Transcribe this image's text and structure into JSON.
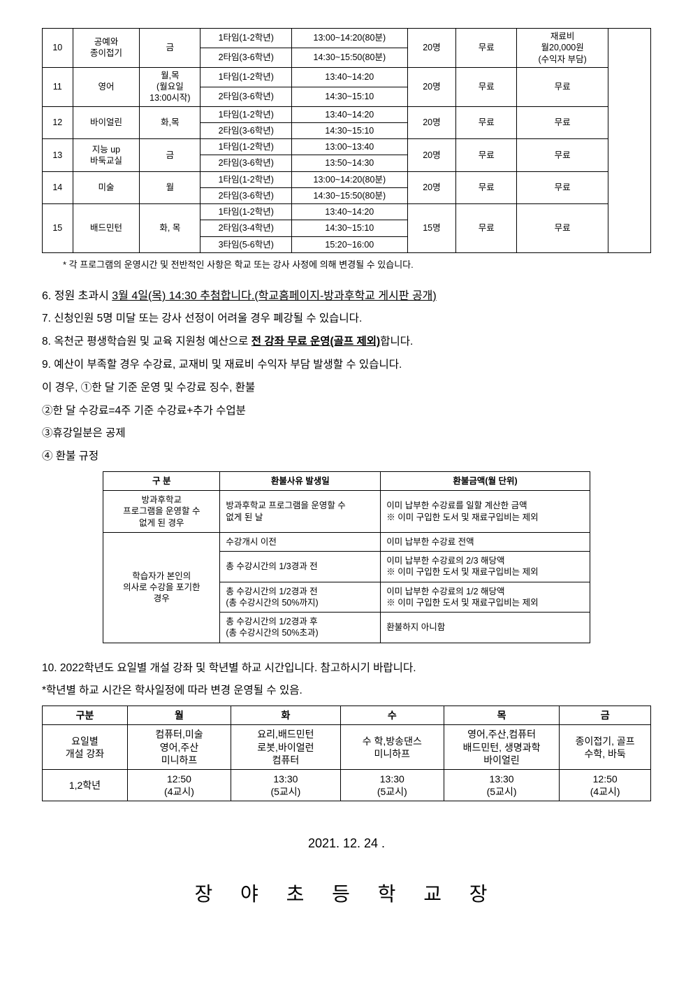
{
  "program_table": {
    "rows": [
      {
        "no": "10",
        "name": "공예와\n종이접기",
        "day": "금",
        "sessions": [
          {
            "t": "1타임(1-2학년)",
            "time": "13:00~14:20(80분)"
          },
          {
            "t": "2타임(3-6학년)",
            "time": "14:30~15:50(80분)"
          }
        ],
        "cap": "20명",
        "fee": "무료",
        "mat": "재료비\n월20,000원\n(수익자 부담)"
      },
      {
        "no": "11",
        "name": "영어",
        "day": "월,목\n(월요일\n13:00시작)",
        "sessions": [
          {
            "t": "1타임(1-2학년)",
            "time": "13:40~14:20"
          },
          {
            "t": "2타임(3-6학년)",
            "time": "14:30~15:10"
          }
        ],
        "cap": "20명",
        "fee": "무료",
        "mat": "무료"
      },
      {
        "no": "12",
        "name": "바이얼린",
        "day": "화,목",
        "sessions": [
          {
            "t": "1타임(1-2학년)",
            "time": "13:40~14:20"
          },
          {
            "t": "2타임(3-6학년)",
            "time": "14:30~15:10"
          }
        ],
        "cap": "20명",
        "fee": "무료",
        "mat": "무료"
      },
      {
        "no": "13",
        "name": "지능 up\n바둑교실",
        "day": "금",
        "sessions": [
          {
            "t": "1타임(1-2학년)",
            "time": "13:00~13:40"
          },
          {
            "t": "2타임(3-6학년)",
            "time": "13:50~14:30"
          }
        ],
        "cap": "20명",
        "fee": "무료",
        "mat": "무료"
      },
      {
        "no": "14",
        "name": "미술",
        "day": "월",
        "sessions": [
          {
            "t": "1타임(1-2학년)",
            "time": "13:00~14:20(80분)"
          },
          {
            "t": "2타임(3-6학년)",
            "time": "14:30~15:50(80분)"
          }
        ],
        "cap": "20명",
        "fee": "무료",
        "mat": "무료"
      },
      {
        "no": "15",
        "name": "배드민턴",
        "day": "화, 목",
        "sessions": [
          {
            "t": "1타임(1-2학년)",
            "time": "13:40~14:20"
          },
          {
            "t": "2타임(3-4학년)",
            "time": "14:30~15:10"
          },
          {
            "t": "3타임(5-6학년)",
            "time": "15:20~16:00"
          }
        ],
        "cap": "15명",
        "fee": "무료",
        "mat": "무료"
      }
    ],
    "footnote": "* 각 프로그램의 운영시간 및 전반적인 사항은 학교 또는 강사 사정에 의해 변경될 수 있습니다."
  },
  "list": {
    "i6a": "6.  정원 초과시 ",
    "i6b": "3월 4일(목) 14:30 추첨합니다.(학교홈페이지-방과후학교 게시판 공개)",
    "i7": "7.  신청인원 5명 미달 또는 강사 선정이 어려울 경우 폐강될 수 있습니다.",
    "i8a": "8.  옥천군 평생학습원 및 교육 지원청 예산으로 ",
    "i8b": "전 강좌 무료 운영(골프 제외)",
    "i8c": "합니다.",
    "i9": "9.  예산이 부족할 경우 수강료, 교재비 및 재료비 수익자 부담 발생할 수 있습니다.",
    "i9a": "이 경우, ①한 달 기준 운영 및 수강료 징수, 환불",
    "i9b": "②한 달 수강료=4주 기준 수강료+추가 수업분",
    "i9c": "③휴강일분은   공제",
    "i9d": "④ 환불 규정",
    "i10": "10. 2022학년도 요일별 개설 강좌 및 학년별 하교 시간입니다. 참고하시기 바랍니다.",
    "i10sub": "*학년별 하교 시간은 학사일정에 따라 변경 운영될 수 있음."
  },
  "refund": {
    "h1": "구    분",
    "h2": "환불사유 발생일",
    "h3": "환불금액(월 단위)",
    "r1c1": "방과후학교\n프로그램을 운영할 수\n없게 된 경우",
    "r1c2": "방과후학교 프로그램을 운영할 수\n없게 된 날",
    "r1c3": "이미 납부한 수강료를 일할 계산한 금액\n※ 이미 구입한 도서 및 재료구입비는 제외",
    "r2c1": "학습자가 본인의\n의사로 수강을 포기한\n경우",
    "r2a": "수강개시 이전",
    "r2b": "이미 납부한 수강료 전액",
    "r3a": "총 수강시간의 1/3경과 전",
    "r3b": "이미 납부한 수강료의 2/3 해당액\n※ 이미 구입한 도서 및 재료구입비는 제외",
    "r4a": "총 수강시간의 1/2경과 전\n(총 수강시간의 50%까지)",
    "r4b": "이미 납부한 수강료의 1/2 해당액\n※ 이미 구입한 도서 및 재료구입비는 제외",
    "r5a": "총 수강시간의 1/2경과 후\n(총 수강시간의 50%초과)",
    "r5b": "환불하지 아니함"
  },
  "schedule": {
    "h0": "구분",
    "h1": "월",
    "h2": "화",
    "h3": "수",
    "h4": "목",
    "h5": "금",
    "r1l": "요일별\n개설 강좌",
    "r1a": "컴퓨터,미술\n영어,주산\n미니하프",
    "r1b": "요리,배드민턴\n로봇,바이얼런\n컴퓨터",
    "r1c": "수 학,방송댄스\n미니하프",
    "r1d": "영어,주산,컴퓨터\n배드민턴, 생명과학\n바이얼린",
    "r1e": "종이접기, 골프\n수학, 바둑",
    "r2l": "1,2학년",
    "r2a": "12:50\n(4교시)",
    "r2b": "13:30\n(5교시)",
    "r2c": "13:30\n(5교시)",
    "r2d": "13:30\n(5교시)",
    "r2e": "12:50\n(4교시)"
  },
  "date": "2021. 12. 24 .",
  "signature": "장 야 초 등 학 교 장"
}
